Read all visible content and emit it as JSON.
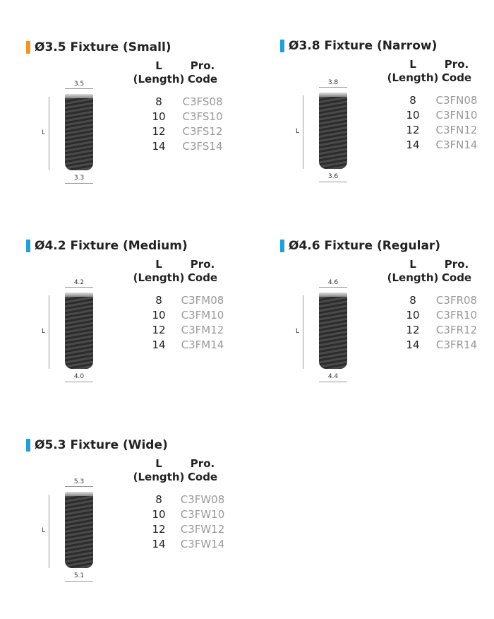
{
  "colors": {
    "small": "#f7941d",
    "other": "#1ba1e2"
  },
  "table_header": {
    "length_l": "L",
    "length_sub": "(Length)",
    "code_l": "Pro.",
    "code_sub": "Code"
  },
  "length_label": "L",
  "sections": [
    {
      "title": "Ø3.5 Fixture (Small)",
      "top_dia": "3.5",
      "bottom_dia": "3.3",
      "lengths": [
        "8",
        "10",
        "12",
        "14"
      ],
      "codes": [
        "C3FS08",
        "C3FS10",
        "C3FS12",
        "C3FS14"
      ]
    },
    {
      "title": "Ø3.8 Fixture (Narrow)",
      "top_dia": "3.8",
      "bottom_dia": "3.6",
      "lengths": [
        "8",
        "10",
        "12",
        "14"
      ],
      "codes": [
        "C3FN08",
        "C3FN10",
        "C3FN12",
        "C3FN14"
      ]
    },
    {
      "title": "Ø4.2 Fixture (Medium)",
      "top_dia": "4.2",
      "bottom_dia": "4.0",
      "lengths": [
        "8",
        "10",
        "12",
        "14"
      ],
      "codes": [
        "C3FM08",
        "C3FM10",
        "C3FM12",
        "C3FM14"
      ]
    },
    {
      "title": "Ø4.6 Fixture (Regular)",
      "top_dia": "4.6",
      "bottom_dia": "4.4",
      "lengths": [
        "8",
        "10",
        "12",
        "14"
      ],
      "codes": [
        "C3FR08",
        "C3FR10",
        "C3FR12",
        "C3FR14"
      ]
    },
    {
      "title": "Ø5.3 Fixture (Wide)",
      "top_dia": "5.3",
      "bottom_dia": "5.1",
      "lengths": [
        "8",
        "10",
        "12",
        "14"
      ],
      "codes": [
        "C3FW08",
        "C3FW10",
        "C3FW12",
        "C3FW14"
      ]
    }
  ]
}
